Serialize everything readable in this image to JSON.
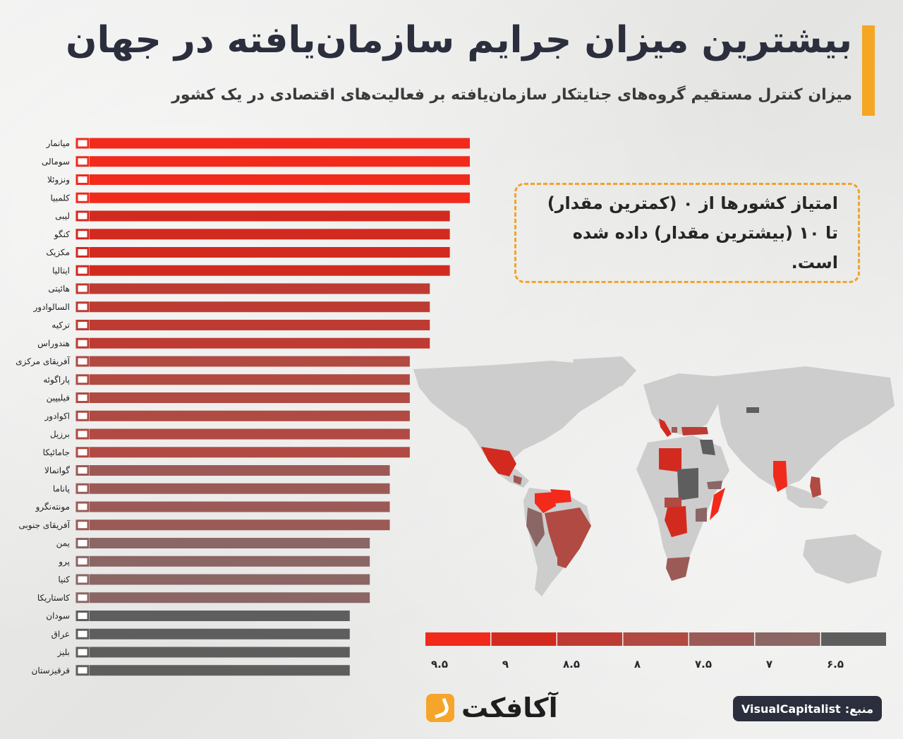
{
  "header": {
    "title": "بیشترین میزان جرایم سازمان‌یافته در جهان",
    "subtitle": "میزان کنترل مستقیم گروه‌های جنایتکار سازمان‌یافته بر فعالیت‌های اقتصادی در یک کشور"
  },
  "note": {
    "line1": "امتیاز کشورها از ۰ (کمترین مقدار)",
    "line2": "تا ۱۰ (بیشترین مقدار) داده شده است."
  },
  "colors": {
    "accent": "#f5a623",
    "score_9_5": "#f12a1c",
    "score_9": "#d32a1f",
    "score_8_5": "#bd3b32",
    "score_8": "#b04a42",
    "score_7_5": "#9c5a56",
    "score_7": "#8a6664",
    "score_6_5": "#5e5e5e"
  },
  "chart_data": {
    "type": "bar",
    "orientation": "horizontal",
    "categories": [
      "میانمار",
      "سومالی",
      "ونزوئلا",
      "کلمبیا",
      "لیبی",
      "کنگو",
      "مکزیک",
      "ایتالیا",
      "هائیتی",
      "السالوادور",
      "ترکیه",
      "هندوراس",
      "آفریقای مرکزی",
      "پاراگوئه",
      "فیلیپین",
      "اکوادور",
      "برزیل",
      "جامائیکا",
      "گواتمالا",
      "پاناما",
      "مونته‌نگرو",
      "آفریقای جنوبی",
      "یمن",
      "پرو",
      "کنیا",
      "کاستاریکا",
      "سودان",
      "عراق",
      "بلیز",
      "قرقیزستان"
    ],
    "values": [
      9.5,
      9.5,
      9.5,
      9.5,
      9,
      9,
      9,
      9,
      8.5,
      8.5,
      8.5,
      8.5,
      8,
      8,
      8,
      8,
      8,
      8,
      7.5,
      7.5,
      7.5,
      7.5,
      7,
      7,
      7,
      7,
      6.5,
      6.5,
      6.5,
      6.5
    ],
    "xlim": [
      0,
      9.5
    ],
    "legend": {
      "items": [
        {
          "label": "۹.۵",
          "value": 9.5
        },
        {
          "label": "۹",
          "value": 9
        },
        {
          "label": "۸.۵",
          "value": 8.5
        },
        {
          "label": "۸",
          "value": 8
        },
        {
          "label": "۷.۵",
          "value": 7.5
        },
        {
          "label": "۷",
          "value": 7
        },
        {
          "label": "۶.۵",
          "value": 6.5
        }
      ]
    }
  },
  "footer": {
    "logo_text": "آکافکت",
    "source_label": "منبع:",
    "source_value": "VisualCapitalist"
  }
}
